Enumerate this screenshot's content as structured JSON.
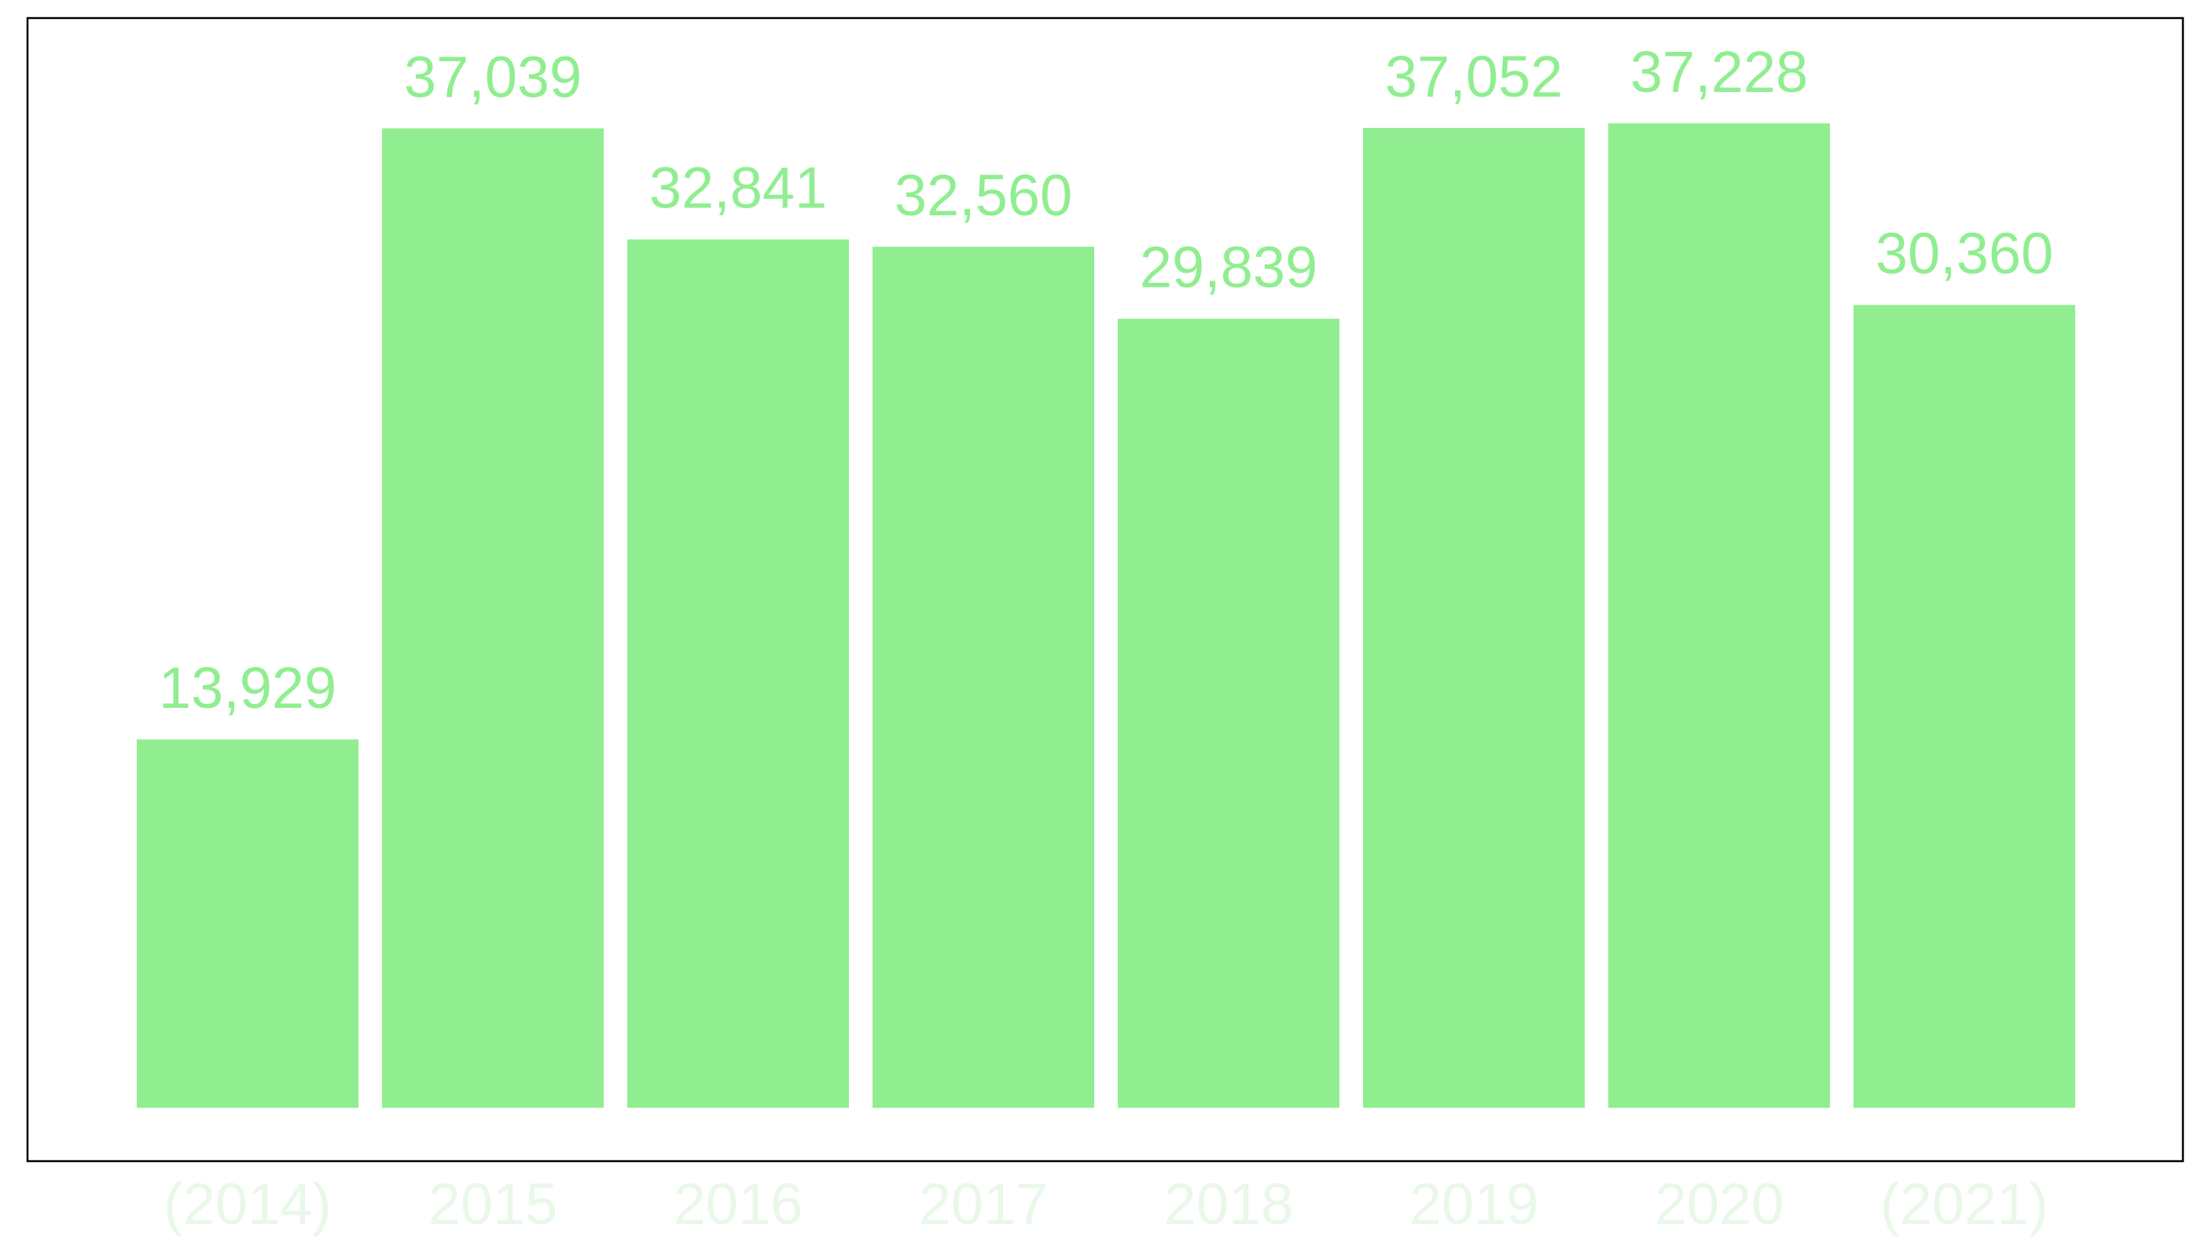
{
  "chart_data": {
    "type": "bar",
    "categories": [
      "(2014)",
      "2015",
      "2016",
      "2017",
      "2018",
      "2019",
      "2020",
      "(2021)"
    ],
    "values": [
      13929,
      37039,
      32841,
      32560,
      29839,
      37052,
      37228,
      30360
    ],
    "value_labels": [
      "13,929",
      "37,039",
      "32,841",
      "32,560",
      "29,839",
      "37,052",
      "37,228",
      "30,360"
    ],
    "title": "",
    "xlabel": "",
    "ylabel": "",
    "ylim": [
      0,
      40000
    ],
    "grid": false,
    "legend": "none",
    "colors": {
      "bar": "#90ee90",
      "value_label": "#90ee90",
      "tick_label": "#e9f8e9",
      "frame": "#000000"
    }
  }
}
